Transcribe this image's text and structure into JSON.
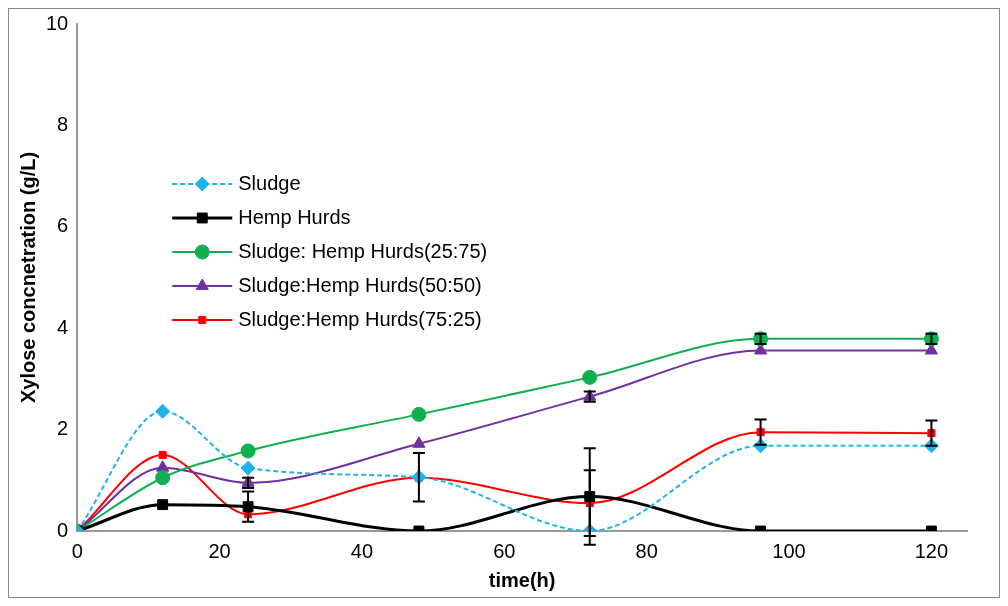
{
  "chart_data": {
    "type": "line",
    "xlabel": "time(h)",
    "ylabel": "Xylose concnetration (g/L)",
    "x": [
      0,
      12,
      24,
      48,
      72,
      96,
      120
    ],
    "xlim": [
      0,
      125
    ],
    "xticks": [
      0,
      20,
      40,
      60,
      80,
      100,
      120
    ],
    "ylim": [
      0,
      10
    ],
    "yticks": [
      0,
      2,
      4,
      6,
      8,
      10
    ],
    "grid": false,
    "legend": "left",
    "series": [
      {
        "name": "Sludge",
        "color": "#1eb4ea",
        "marker": "diamond",
        "line_style": "dashed",
        "values": [
          0,
          2.36,
          1.24,
          1.06,
          0,
          1.68,
          1.68
        ],
        "errors": [
          null,
          null,
          null,
          0.48,
          null,
          null,
          null
        ]
      },
      {
        "name": "Hemp Hurds",
        "color": "#000000",
        "marker": "square",
        "line_style": "solid",
        "values": [
          0,
          0.52,
          0.48,
          0,
          0.68,
          0,
          0
        ],
        "errors": [
          null,
          null,
          0.3,
          null,
          0.95,
          null,
          null
        ]
      },
      {
        "name": "Sludge: Hemp Hurds(25:75)",
        "color": "#10b050",
        "marker": "circle",
        "line_style": "solid",
        "values": [
          0,
          1.05,
          1.58,
          2.3,
          3.03,
          3.79,
          3.79
        ],
        "errors": [
          null,
          null,
          null,
          null,
          null,
          0.1,
          0.1
        ]
      },
      {
        "name": "Sludge:Hemp Hurds(50:50)",
        "color": "#7030a0",
        "marker": "triangle",
        "line_style": "solid",
        "values": [
          0,
          1.25,
          0.95,
          1.72,
          2.65,
          3.56,
          3.56
        ],
        "errors": [
          null,
          null,
          0.1,
          null,
          0.1,
          null,
          null
        ]
      },
      {
        "name": "Sludge:Hemp Hurds(75:25)",
        "color": "#ff0000",
        "marker": "square",
        "line_style": "solid",
        "values": [
          0,
          1.5,
          0.33,
          1.05,
          0.55,
          1.95,
          1.93
        ],
        "errors": [
          null,
          null,
          null,
          null,
          0.65,
          0.25,
          0.25
        ]
      }
    ]
  }
}
